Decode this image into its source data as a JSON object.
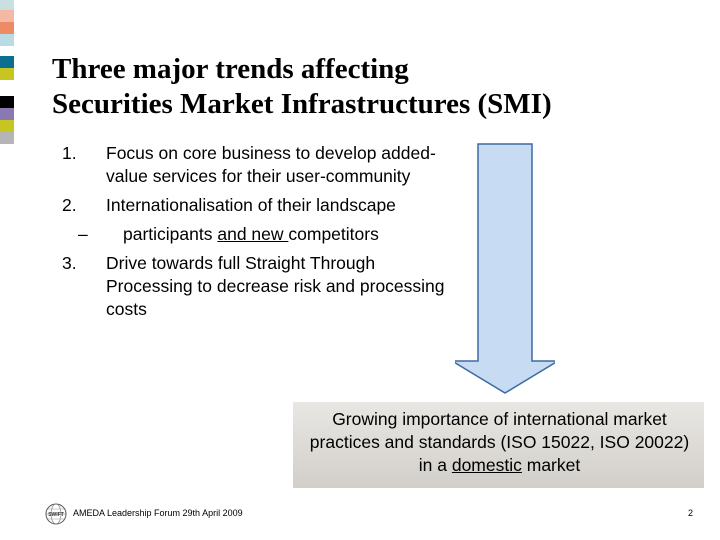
{
  "colors": {
    "strip": [
      "#c9dfe2",
      "#f4b9a3",
      "#ef8a66",
      "#b9dbe6",
      "#ffffff",
      "#0c6f8f",
      "#c7c520",
      "#ffffff",
      "#000000",
      "#8a78b3",
      "#c7c520",
      "#b5b5b5"
    ],
    "arrow_fill": "#c7dcf3",
    "arrow_stroke": "#3d6aa3"
  },
  "slide": {
    "title_line1": "Three major trends affecting",
    "title_line2": "Securities Market Infrastructures (SMI)"
  },
  "list": {
    "item1_num": "1.",
    "item1_text": "Focus on core business to develop added-value services for their user-community",
    "item2_num": "2.",
    "item2_text": "Internationalisation of their landscape",
    "sub_dash": "–",
    "sub_pre": "participants ",
    "sub_underline": "and new ",
    "sub_post": "competitors",
    "item3_num": "3.",
    "item3_text": "Drive towards full Straight Through Processing to decrease risk and processing costs"
  },
  "callout": {
    "line1": "Growing importance of international market practices and standards (ISO 15022, ISO 20022) in a ",
    "underlined": "domestic",
    "end": " market"
  },
  "footer": {
    "logo_text": "SWIFT",
    "text": "AMEDA Leadership Forum 29th April 2009",
    "page": "2"
  }
}
